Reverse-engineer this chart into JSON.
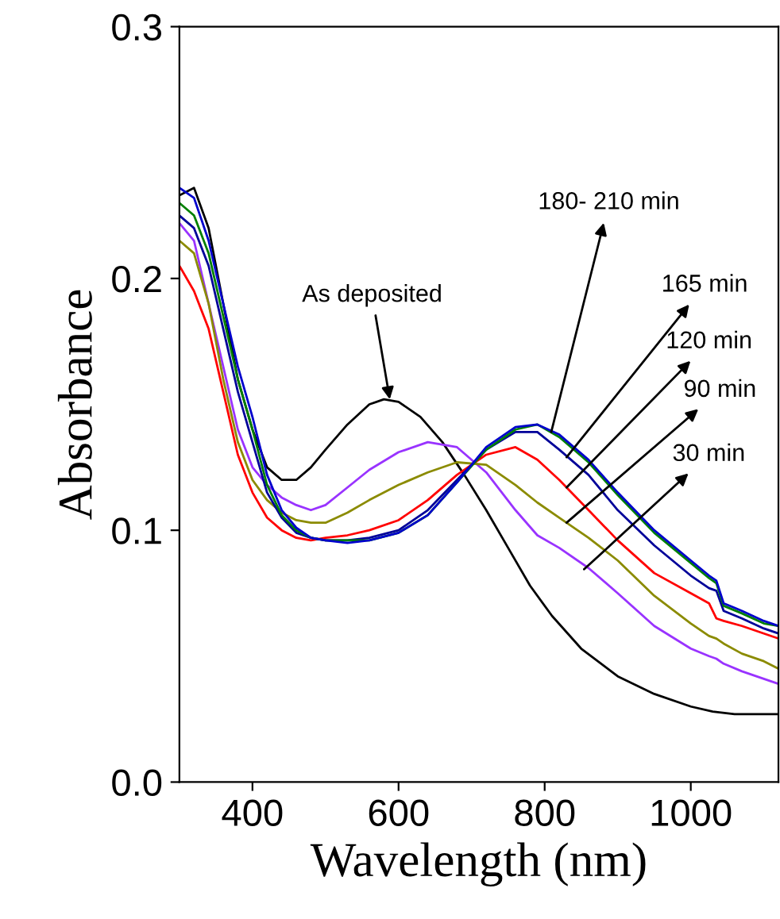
{
  "chart_data": {
    "type": "line",
    "xlabel": "Wavelength (nm)",
    "ylabel": "Absorbance",
    "xlim": [
      300,
      1120
    ],
    "ylim": [
      0,
      0.3
    ],
    "xticks": [
      400,
      600,
      800,
      1000
    ],
    "yticks": [
      {
        "value": 0,
        "label": "0.0"
      },
      0.1,
      0.2,
      0.3
    ],
    "grid": false,
    "legend": false,
    "marker": "none",
    "line_style": "solid",
    "x": [
      300,
      320,
      340,
      360,
      380,
      400,
      420,
      440,
      460,
      480,
      500,
      530,
      560,
      600,
      640,
      680,
      720,
      760,
      790,
      820,
      860,
      900,
      950,
      1000,
      1025,
      1035,
      1045,
      1070,
      1100,
      1120
    ],
    "series": [
      {
        "color": "#000000",
        "x": [
          300,
          320,
          340,
          360,
          380,
          400,
          420,
          440,
          460,
          480,
          500,
          530,
          560,
          580,
          600,
          630,
          660,
          690,
          720,
          750,
          780,
          810,
          850,
          900,
          950,
          1000,
          1030,
          1060,
          1100,
          1120
        ],
        "values": [
          0.233,
          0.236,
          0.22,
          0.19,
          0.16,
          0.14,
          0.125,
          0.12,
          0.12,
          0.125,
          0.132,
          0.142,
          0.15,
          0.152,
          0.151,
          0.145,
          0.135,
          0.122,
          0.108,
          0.093,
          0.078,
          0.066,
          0.053,
          0.042,
          0.035,
          0.03,
          0.028,
          0.027,
          0.027,
          0.027
        ]
      },
      {
        "color": "#9933ff",
        "values": [
          0.222,
          0.215,
          0.19,
          0.165,
          0.14,
          0.125,
          0.118,
          0.113,
          0.11,
          0.108,
          0.11,
          0.117,
          0.124,
          0.131,
          0.135,
          0.133,
          0.123,
          0.108,
          0.098,
          0.093,
          0.085,
          0.075,
          0.062,
          0.053,
          0.05,
          0.049,
          0.047,
          0.044,
          0.041,
          0.039
        ]
      },
      {
        "color": "#8b8b00",
        "values": [
          0.215,
          0.21,
          0.19,
          0.16,
          0.135,
          0.12,
          0.112,
          0.107,
          0.104,
          0.103,
          0.103,
          0.107,
          0.112,
          0.118,
          0.123,
          0.127,
          0.126,
          0.118,
          0.111,
          0.105,
          0.097,
          0.088,
          0.074,
          0.063,
          0.058,
          0.057,
          0.055,
          0.051,
          0.048,
          0.045
        ]
      },
      {
        "color": "#ff0000",
        "values": [
          0.205,
          0.195,
          0.18,
          0.155,
          0.13,
          0.115,
          0.105,
          0.1,
          0.097,
          0.096,
          0.097,
          0.098,
          0.1,
          0.104,
          0.112,
          0.122,
          0.13,
          0.133,
          0.128,
          0.12,
          0.108,
          0.096,
          0.083,
          0.075,
          0.071,
          0.065,
          0.064,
          0.062,
          0.059,
          0.057
        ]
      },
      {
        "color": "#000099",
        "values": [
          0.225,
          0.22,
          0.205,
          0.18,
          0.155,
          0.135,
          0.115,
          0.105,
          0.099,
          0.097,
          0.096,
          0.096,
          0.097,
          0.1,
          0.108,
          0.12,
          0.132,
          0.139,
          0.139,
          0.132,
          0.122,
          0.108,
          0.094,
          0.082,
          0.077,
          0.076,
          0.068,
          0.065,
          0.061,
          0.059
        ]
      },
      {
        "color": "#008000",
        "values": [
          0.23,
          0.225,
          0.21,
          0.185,
          0.16,
          0.14,
          0.118,
          0.106,
          0.1,
          0.097,
          0.096,
          0.096,
          0.096,
          0.099,
          0.106,
          0.119,
          0.132,
          0.14,
          0.142,
          0.137,
          0.127,
          0.114,
          0.099,
          0.087,
          0.081,
          0.079,
          0.07,
          0.067,
          0.063,
          0.062
        ]
      },
      {
        "color": "#0000cc",
        "values": [
          0.236,
          0.232,
          0.215,
          0.19,
          0.165,
          0.145,
          0.122,
          0.108,
          0.101,
          0.097,
          0.096,
          0.095,
          0.096,
          0.099,
          0.106,
          0.119,
          0.133,
          0.141,
          0.142,
          0.138,
          0.128,
          0.115,
          0.1,
          0.088,
          0.082,
          0.08,
          0.071,
          0.068,
          0.064,
          0.062
        ]
      }
    ],
    "annotations": [
      {
        "text": "As deposited",
        "x": 588,
        "y": 0.152
      },
      {
        "text": "180- 210 min",
        "x": 809,
        "y": 0.139
      },
      {
        "text": "165 min",
        "x": 830,
        "y": 0.129
      },
      {
        "text": "120 min",
        "x": 830,
        "y": 0.117
      },
      {
        "text": "90 min",
        "x": 830,
        "y": 0.103
      },
      {
        "text": "30 min",
        "x": 854,
        "y": 0.0845
      }
    ]
  }
}
